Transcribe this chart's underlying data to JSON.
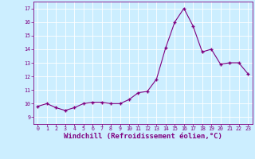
{
  "x": [
    0,
    1,
    2,
    3,
    4,
    5,
    6,
    7,
    8,
    9,
    10,
    11,
    12,
    13,
    14,
    15,
    16,
    17,
    18,
    19,
    20,
    21,
    22,
    23
  ],
  "y": [
    9.8,
    10.0,
    9.7,
    9.5,
    9.7,
    10.0,
    10.1,
    10.1,
    10.0,
    10.0,
    10.3,
    10.8,
    10.9,
    11.8,
    14.1,
    16.0,
    17.0,
    15.7,
    13.8,
    14.0,
    12.9,
    13.0,
    13.0,
    12.2
  ],
  "line_color": "#800080",
  "marker": "+",
  "marker_color": "#800080",
  "bg_color": "#cceeff",
  "grid_color": "#ffffff",
  "xlabel": "Windchill (Refroidissement éolien,°C)",
  "xlabel_color": "#800080",
  "ylim": [
    8.5,
    17.5
  ],
  "xlim": [
    -0.5,
    23.5
  ],
  "yticks": [
    9,
    10,
    11,
    12,
    13,
    14,
    15,
    16,
    17
  ],
  "xticks": [
    0,
    1,
    2,
    3,
    4,
    5,
    6,
    7,
    8,
    9,
    10,
    11,
    12,
    13,
    14,
    15,
    16,
    17,
    18,
    19,
    20,
    21,
    22,
    23
  ],
  "xtick_labels": [
    "0",
    "1",
    "2",
    "3",
    "4",
    "5",
    "6",
    "7",
    "8",
    "9",
    "10",
    "11",
    "12",
    "13",
    "14",
    "15",
    "16",
    "17",
    "18",
    "19",
    "20",
    "21",
    "22",
    "23"
  ],
  "tick_color": "#800080",
  "tick_fontsize": 4.8,
  "xlabel_fontsize": 6.5,
  "linewidth": 0.8,
  "markersize": 3.5
}
